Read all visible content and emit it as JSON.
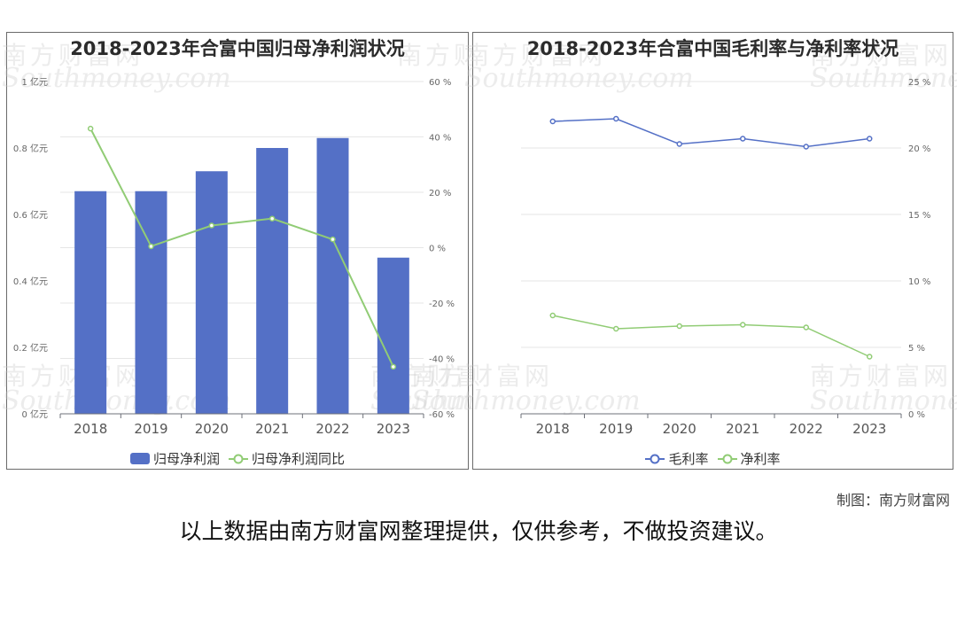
{
  "watermark": {
    "cn": "南方财富网",
    "en": "Southmoney.com"
  },
  "left_chart": {
    "title": "2018-2023年合富中国归母净利润状况",
    "legend": [
      {
        "label": "归母净利润",
        "color": "#5470c6",
        "shape": "bar"
      },
      {
        "label": "归母净利润同比",
        "color": "#91cc75",
        "shape": "line"
      }
    ]
  },
  "right_chart": {
    "title": "2018-2023年合富中国毛利率与净利率状况",
    "legend": [
      {
        "label": "毛利率",
        "color": "#5470c6",
        "shape": "line"
      },
      {
        "label": "净利率",
        "color": "#91cc75",
        "shape": "line"
      }
    ]
  },
  "caption": "制图：南方财富网",
  "footer": "以上数据由南方财富网整理提供，仅供参考，不做投资建议。",
  "chart_data": [
    {
      "type": "bar",
      "title": "2018-2023年合富中国归母净利润状况",
      "categories": [
        "2018",
        "2019",
        "2020",
        "2021",
        "2022",
        "2023"
      ],
      "y_left": {
        "ticks": [
          "0 亿元",
          "0.2 亿元",
          "0.4 亿元",
          "0.6 亿元",
          "0.8 亿元",
          "1 亿元"
        ],
        "ylim": [
          0,
          1
        ]
      },
      "y_right": {
        "ticks": [
          "-60 %",
          "-40 %",
          "-20 %",
          "0 %",
          "20 %",
          "40 %",
          "60 %"
        ],
        "ylim": [
          -60,
          60
        ]
      },
      "series": [
        {
          "name": "归母净利润",
          "type": "bar",
          "axis": "left",
          "color": "#5470c6",
          "values": [
            0.67,
            0.67,
            0.73,
            0.8,
            0.83,
            0.47
          ]
        },
        {
          "name": "归母净利润同比",
          "type": "line",
          "axis": "right",
          "color": "#91cc75",
          "values": [
            43,
            0.5,
            8,
            10.5,
            3,
            -43
          ]
        }
      ],
      "grid": true
    },
    {
      "type": "line",
      "title": "2018-2023年合富中国毛利率与净利率状况",
      "categories": [
        "2018",
        "2019",
        "2020",
        "2021",
        "2022",
        "2023"
      ],
      "y_right": {
        "ticks": [
          "0 %",
          "5 %",
          "10 %",
          "15 %",
          "20 %",
          "25 %"
        ],
        "ylim": [
          0,
          25
        ]
      },
      "series": [
        {
          "name": "毛利率",
          "color": "#5470c6",
          "values": [
            22.0,
            22.2,
            20.3,
            20.7,
            20.1,
            20.7
          ]
        },
        {
          "name": "净利率",
          "color": "#91cc75",
          "values": [
            7.4,
            6.4,
            6.6,
            6.7,
            6.5,
            4.3
          ]
        }
      ],
      "grid": true
    }
  ]
}
